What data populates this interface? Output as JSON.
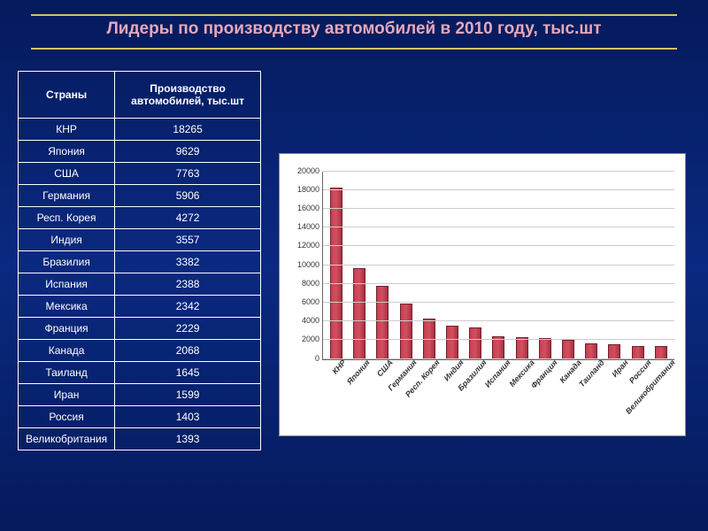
{
  "title": "Лидеры по производству автомобилей в 2010 году, тыс.шт",
  "table": {
    "headers": {
      "country": "Страны",
      "value": "Производство автомобилей, тыс.шт"
    },
    "rows": [
      {
        "country": "КНР",
        "value": "18265"
      },
      {
        "country": "Япония",
        "value": "9629"
      },
      {
        "country": "США",
        "value": "7763"
      },
      {
        "country": "Германия",
        "value": "5906"
      },
      {
        "country": "Респ. Корея",
        "value": "4272"
      },
      {
        "country": "Индия",
        "value": "3557"
      },
      {
        "country": "Бразилия",
        "value": "3382"
      },
      {
        "country": "Испания",
        "value": "2388"
      },
      {
        "country": "Мексика",
        "value": "2342"
      },
      {
        "country": "Франция",
        "value": "2229"
      },
      {
        "country": "Канада",
        "value": "2068"
      },
      {
        "country": "Таиланд",
        "value": "1645"
      },
      {
        "country": "Иран",
        "value": "1599"
      },
      {
        "country": "Россия",
        "value": "1403"
      },
      {
        "country": "Великобритания",
        "value": "1393"
      }
    ]
  },
  "chart": {
    "type": "bar",
    "categories": [
      "КНР",
      "Япония",
      "США",
      "Германия",
      "Респ. Корея",
      "Индия",
      "Бразилия",
      "Испания",
      "Мексика",
      "Франция",
      "Канада",
      "Таиланд",
      "Иран",
      "Россия",
      "Великобритания"
    ],
    "values": [
      18265,
      9629,
      7763,
      5906,
      4272,
      3557,
      3382,
      2388,
      2342,
      2229,
      2068,
      1645,
      1599,
      1403,
      1393
    ],
    "ylim": [
      0,
      20000
    ],
    "ytick_step": 2000,
    "yticks": [
      "0",
      "2000",
      "4000",
      "6000",
      "8000",
      "10000",
      "12000",
      "14000",
      "16000",
      "18000",
      "20000"
    ],
    "bar_color": "#c84050",
    "bar_border": "#702030",
    "background_color": "#ffffff",
    "grid_color": "#cccccc",
    "axis_color": "#666666",
    "label_fontsize": 9,
    "label_color": "#333333",
    "label_font_style": "italic",
    "x_label_rotation": -48
  },
  "styling": {
    "page_bg_top": "#041a5c",
    "page_bg_mid": "#0a2980",
    "title_color": "#e8a8b8",
    "title_fontsize": 19,
    "rule_color": "#d6c068",
    "table_border": "#ffffff",
    "table_text": "#ffffff",
    "table_fontsize": 12
  }
}
